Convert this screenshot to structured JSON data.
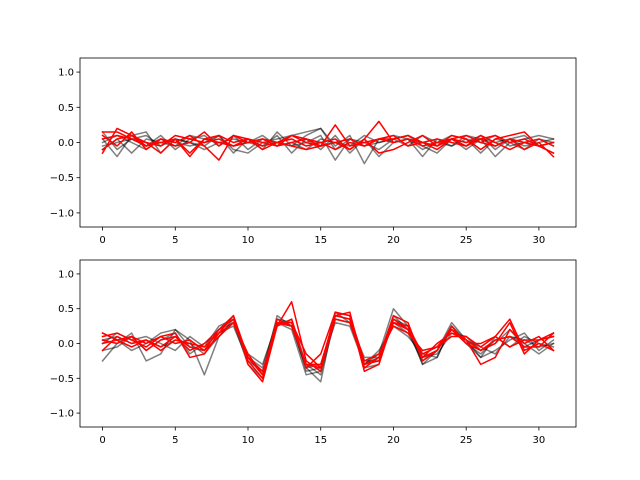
{
  "colors": {
    "gray_series": "#000000",
    "red_series": "#ff0000",
    "background": "#ffffff",
    "axes": "#000000"
  },
  "chart_data": [
    {
      "type": "line",
      "panel": "top",
      "title": "",
      "xlabel": "",
      "ylabel": "",
      "xlim": [
        -1.55,
        32.55
      ],
      "ylim": [
        -1.2,
        1.2
      ],
      "xticks": [
        0,
        5,
        10,
        15,
        20,
        25,
        30
      ],
      "yticks": [
        -1.0,
        -0.5,
        0.0,
        0.5,
        1.0
      ],
      "grid": false,
      "legend": "none",
      "x": [
        0,
        1,
        2,
        3,
        4,
        5,
        6,
        7,
        8,
        9,
        10,
        11,
        12,
        13,
        14,
        15,
        16,
        17,
        18,
        19,
        20,
        21,
        22,
        23,
        24,
        25,
        26,
        27,
        28,
        29,
        30,
        31
      ],
      "series": [
        {
          "color": "#000000",
          "alpha": 0.5,
          "values": [
            0.15,
            -0.1,
            0.05,
            -0.05,
            0.1,
            -0.1,
            0.05,
            0.1,
            -0.05,
            0.1,
            -0.1,
            0.05,
            0.0,
            -0.05,
            0.1,
            0.2,
            -0.05,
            0.1,
            -0.3,
            0.05,
            0.1,
            0.05,
            -0.2,
            0.05,
            -0.05,
            0.1,
            0.05,
            -0.2,
            0.0,
            0.05,
            0.1,
            0.05
          ]
        },
        {
          "color": "#000000",
          "alpha": 0.5,
          "values": [
            0.05,
            -0.2,
            0.1,
            0.15,
            -0.15,
            0.05,
            0.0,
            -0.05,
            0.1,
            -0.15,
            0.05,
            -0.1,
            0.15,
            -0.05,
            0.0,
            0.1,
            -0.25,
            0.05,
            0.0,
            -0.1,
            0.05,
            0.1,
            -0.05,
            -0.15,
            0.05,
            0.0,
            0.1,
            -0.1,
            0.05,
            -0.05,
            0.0,
            0.05
          ]
        },
        {
          "color": "#000000",
          "alpha": 0.5,
          "values": [
            -0.1,
            0.05,
            -0.15,
            0.05,
            0.0,
            -0.05,
            0.1,
            0.05,
            0.0,
            -0.05,
            0.0,
            0.1,
            -0.05,
            0.0,
            -0.1,
            0.05,
            0.0,
            -0.05,
            0.1,
            0.0,
            0.05,
            -0.05,
            0.1,
            0.0,
            -0.05,
            0.05,
            0.0,
            0.1,
            -0.05,
            0.0,
            -0.05,
            0.0
          ]
        },
        {
          "color": "#000000",
          "alpha": 0.5,
          "values": [
            0.0,
            0.1,
            0.0,
            -0.1,
            0.05,
            0.0,
            -0.05,
            0.0,
            0.1,
            -0.1,
            -0.15,
            0.0,
            0.05,
            0.1,
            0.15,
            0.2,
            -0.1,
            0.05,
            -0.05,
            0.0,
            0.05,
            0.1,
            0.0,
            -0.05,
            0.05,
            -0.1,
            0.05,
            0.0,
            0.05,
            0.1,
            -0.05,
            0.0
          ]
        },
        {
          "color": "#000000",
          "alpha": 0.5,
          "values": [
            -0.05,
            0.0,
            0.05,
            0.1,
            -0.05,
            0.05,
            0.0,
            -0.1,
            0.0,
            0.05,
            0.0,
            -0.05,
            0.1,
            -0.15,
            0.05,
            -0.1,
            0.1,
            -0.15,
            0.05,
            -0.2,
            0.0,
            0.05,
            -0.1,
            0.0,
            0.1,
            0.05,
            -0.15,
            0.05,
            0.0,
            -0.1,
            0.05,
            0.0
          ]
        },
        {
          "color": "#ff0000",
          "alpha": 1.0,
          "values": [
            0.15,
            0.15,
            0.05,
            -0.05,
            0.05,
            -0.05,
            0.0,
            0.15,
            -0.05,
            0.1,
            0.05,
            -0.1,
            0.0,
            0.05,
            -0.05,
            0.0,
            0.05,
            -0.1,
            0.05,
            -0.15,
            -0.1,
            0.0,
            0.1,
            -0.05,
            0.05,
            0.1,
            0.0,
            -0.05,
            0.05,
            -0.1,
            0.0,
            -0.2
          ]
        },
        {
          "color": "#ff0000",
          "alpha": 1.0,
          "values": [
            -0.1,
            0.05,
            0.1,
            -0.05,
            0.0,
            0.05,
            -0.2,
            0.05,
            0.0,
            -0.05,
            0.05,
            0.0,
            -0.05,
            0.1,
            0.0,
            -0.05,
            0.0,
            0.05,
            -0.05,
            0.05,
            0.1,
            -0.05,
            0.0,
            0.05,
            0.0,
            -0.05,
            0.05,
            0.1,
            0.0,
            0.05,
            -0.05,
            -0.15
          ]
        },
        {
          "color": "#ff0000",
          "alpha": 1.0,
          "values": [
            0.1,
            -0.05,
            0.15,
            -0.1,
            0.05,
            0.0,
            0.1,
            -0.05,
            -0.25,
            0.1,
            0.0,
            0.05,
            -0.05,
            0.0,
            0.05,
            -0.05,
            0.0,
            -0.1,
            0.05,
            0.3,
            0.0,
            0.05,
            0.0,
            -0.1,
            0.05,
            -0.05,
            0.1,
            0.0,
            -0.1,
            0.0,
            0.05,
            -0.05
          ]
        },
        {
          "color": "#ff0000",
          "alpha": 1.0,
          "values": [
            -0.15,
            0.2,
            0.1,
            0.0,
            -0.05,
            0.1,
            0.05,
            0.0,
            0.05,
            -0.05,
            0.0,
            0.05,
            0.0,
            -0.05,
            -0.1,
            -0.05,
            0.25,
            -0.05,
            0.0,
            0.05,
            0.05,
            0.1,
            0.0,
            -0.05,
            0.1,
            0.05,
            -0.1,
            0.05,
            0.1,
            0.15,
            -0.05,
            -0.15
          ]
        },
        {
          "color": "#ff0000",
          "alpha": 1.0,
          "values": [
            0.05,
            0.1,
            0.05,
            0.0,
            -0.15,
            0.05,
            -0.15,
            0.05,
            0.1,
            0.0,
            0.05,
            -0.05,
            0.0,
            0.1,
            0.05,
            0.0,
            -0.1,
            0.0,
            -0.05,
            0.05,
            0.0,
            0.05,
            -0.05,
            0.0,
            0.05,
            0.0,
            0.05,
            -0.05,
            0.05,
            0.0,
            -0.05,
            0.0
          ]
        }
      ]
    },
    {
      "type": "line",
      "panel": "bottom",
      "title": "",
      "xlabel": "",
      "ylabel": "",
      "xlim": [
        -1.55,
        32.55
      ],
      "ylim": [
        -1.2,
        1.2
      ],
      "xticks": [
        0,
        5,
        10,
        15,
        20,
        25,
        30
      ],
      "yticks": [
        -1.0,
        -0.5,
        0.0,
        0.5,
        1.0
      ],
      "grid": false,
      "legend": "none",
      "x": [
        0,
        1,
        2,
        3,
        4,
        5,
        6,
        7,
        8,
        9,
        10,
        11,
        12,
        13,
        14,
        15,
        16,
        17,
        18,
        19,
        20,
        21,
        22,
        23,
        24,
        25,
        26,
        27,
        28,
        29,
        30,
        31
      ],
      "series": [
        {
          "color": "#000000",
          "alpha": 0.5,
          "values": [
            -0.25,
            0.0,
            0.15,
            -0.25,
            -0.15,
            0.2,
            0.05,
            -0.45,
            0.1,
            0.35,
            -0.2,
            -0.45,
            0.4,
            0.25,
            -0.35,
            -0.55,
            0.45,
            0.3,
            -0.3,
            -0.15,
            0.5,
            0.25,
            -0.3,
            -0.1,
            0.3,
            0.05,
            -0.2,
            -0.1,
            0.05,
            0.15,
            -0.1,
            0.05
          ]
        },
        {
          "color": "#000000",
          "alpha": 0.5,
          "values": [
            0.15,
            0.05,
            -0.1,
            0.0,
            0.15,
            0.2,
            -0.05,
            -0.1,
            0.2,
            0.3,
            -0.3,
            -0.5,
            0.3,
            0.2,
            -0.45,
            -0.4,
            0.45,
            0.4,
            -0.35,
            -0.3,
            0.4,
            0.2,
            -0.3,
            -0.2,
            0.25,
            0.0,
            -0.15,
            0.05,
            0.1,
            0.05,
            -0.05,
            0.0
          ]
        },
        {
          "color": "#000000",
          "alpha": 0.5,
          "values": [
            0.0,
            0.15,
            0.05,
            0.1,
            0.0,
            -0.1,
            0.1,
            -0.05,
            0.25,
            0.35,
            -0.2,
            -0.35,
            0.35,
            0.3,
            -0.4,
            -0.35,
            0.4,
            0.35,
            -0.25,
            -0.25,
            0.3,
            0.15,
            -0.25,
            -0.1,
            0.2,
            0.0,
            -0.2,
            0.1,
            -0.05,
            0.1,
            0.0,
            -0.05
          ]
        },
        {
          "color": "#000000",
          "alpha": 0.5,
          "values": [
            -0.1,
            -0.05,
            0.1,
            -0.1,
            0.05,
            0.15,
            -0.15,
            0.0,
            0.15,
            0.25,
            -0.25,
            -0.4,
            0.25,
            0.35,
            -0.3,
            -0.45,
            0.35,
            0.3,
            -0.2,
            -0.2,
            0.35,
            0.25,
            -0.2,
            -0.15,
            0.15,
            0.1,
            -0.1,
            0.0,
            0.2,
            -0.05,
            0.05,
            0.1
          ]
        },
        {
          "color": "#000000",
          "alpha": 0.5,
          "values": [
            0.05,
            0.1,
            0.0,
            0.05,
            -0.05,
            0.05,
            0.0,
            -0.15,
            0.1,
            0.3,
            -0.15,
            -0.3,
            0.3,
            0.25,
            -0.35,
            -0.3,
            0.3,
            0.25,
            -0.3,
            -0.1,
            0.25,
            0.1,
            -0.15,
            -0.2,
            0.25,
            0.05,
            -0.05,
            -0.15,
            0.1,
            0.0,
            -0.15,
            0.0
          ]
        },
        {
          "color": "#ff0000",
          "alpha": 1.0,
          "values": [
            0.1,
            0.15,
            0.05,
            -0.05,
            0.1,
            0.15,
            -0.2,
            -0.15,
            0.15,
            0.4,
            -0.3,
            -0.55,
            0.25,
            0.6,
            -0.25,
            -0.4,
            0.4,
            0.45,
            -0.35,
            -0.2,
            0.4,
            0.3,
            -0.25,
            -0.1,
            0.2,
            0.0,
            0.0,
            0.1,
            0.35,
            -0.1,
            0.0,
            -0.1
          ]
        },
        {
          "color": "#ff0000",
          "alpha": 1.0,
          "values": [
            0.15,
            0.05,
            0.1,
            -0.1,
            0.05,
            0.1,
            -0.1,
            0.0,
            0.2,
            0.35,
            -0.25,
            -0.5,
            0.3,
            0.3,
            -0.15,
            -0.35,
            0.45,
            0.4,
            -0.4,
            -0.3,
            0.35,
            0.2,
            -0.2,
            0.0,
            0.15,
            0.05,
            -0.3,
            -0.2,
            0.2,
            0.0,
            0.1,
            -0.1
          ]
        },
        {
          "color": "#ff0000",
          "alpha": 1.0,
          "values": [
            -0.1,
            0.1,
            0.0,
            0.05,
            -0.1,
            0.05,
            0.0,
            -0.05,
            0.15,
            0.3,
            -0.2,
            -0.45,
            0.35,
            0.25,
            -0.3,
            -0.3,
            0.4,
            0.35,
            -0.3,
            -0.25,
            0.3,
            0.25,
            -0.15,
            -0.05,
            0.2,
            0.05,
            -0.1,
            0.0,
            0.3,
            -0.15,
            0.05,
            0.15
          ]
        },
        {
          "color": "#ff0000",
          "alpha": 1.0,
          "values": [
            0.05,
            0.0,
            0.1,
            0.0,
            0.1,
            0.0,
            0.05,
            -0.1,
            0.2,
            0.4,
            -0.2,
            -0.4,
            0.25,
            0.35,
            -0.35,
            -0.15,
            0.45,
            0.4,
            -0.25,
            -0.15,
            0.25,
            0.15,
            -0.1,
            -0.05,
            0.1,
            0.1,
            -0.05,
            0.1,
            -0.05,
            0.05,
            0.05,
            0.1
          ]
        },
        {
          "color": "#ff0000",
          "alpha": 1.0,
          "values": [
            0.0,
            0.05,
            -0.05,
            0.05,
            -0.05,
            0.1,
            -0.05,
            -0.1,
            0.1,
            0.3,
            -0.15,
            -0.45,
            0.3,
            0.25,
            -0.3,
            -0.35,
            0.35,
            0.3,
            -0.3,
            -0.2,
            0.3,
            0.2,
            -0.2,
            -0.1,
            0.25,
            0.0,
            -0.1,
            0.05,
            0.1,
            -0.05,
            -0.05,
            0.15
          ]
        }
      ]
    }
  ]
}
